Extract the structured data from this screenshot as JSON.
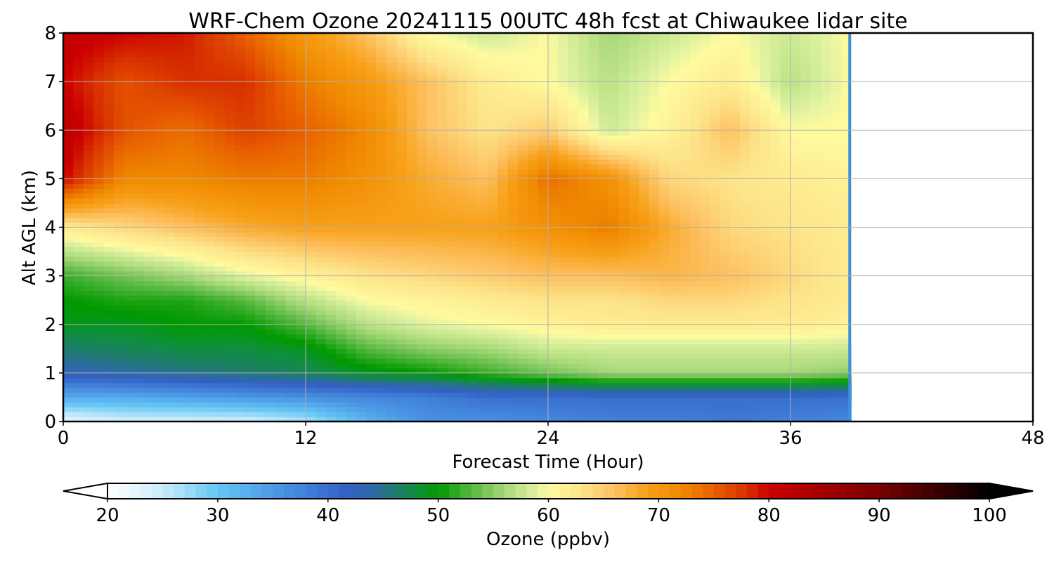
{
  "chart_data": {
    "type": "heatmap",
    "title": "WRF-Chem Ozone  20241115 00UTC 48h fcst at Chiwaukee lidar site",
    "xlabel": "Forecast Time (Hour)",
    "ylabel": "Alt AGL (km)",
    "xlim": [
      0,
      48
    ],
    "ylim": [
      0,
      8
    ],
    "xticks": [
      0,
      12,
      24,
      36,
      48
    ],
    "yticks": [
      0,
      1,
      2,
      3,
      4,
      5,
      6,
      7,
      8
    ],
    "grid": true,
    "data_end_hour": 39,
    "x": [
      0,
      3,
      6,
      9,
      12,
      15,
      18,
      21,
      24,
      27,
      30,
      33,
      36,
      39
    ],
    "y": [
      0,
      0.5,
      1,
      1.5,
      2,
      2.5,
      3,
      4,
      5,
      6,
      7,
      8
    ],
    "z": [
      [
        22,
        24,
        24,
        24,
        26,
        32,
        36,
        36,
        37,
        38,
        38,
        39,
        38,
        37
      ],
      [
        33,
        33,
        34,
        35,
        36,
        37,
        38,
        40,
        40,
        40,
        40,
        40,
        40,
        40
      ],
      [
        43,
        44,
        45,
        46,
        47,
        49,
        50,
        52,
        54,
        56,
        56,
        56,
        56,
        55
      ],
      [
        46,
        47,
        48,
        48,
        49,
        53,
        55,
        56,
        58,
        58,
        58,
        58,
        58,
        58
      ],
      [
        49,
        49,
        50,
        50,
        53,
        57,
        59,
        60,
        61,
        62,
        62,
        62,
        62,
        61
      ],
      [
        50,
        51,
        51,
        53,
        57,
        60,
        61,
        62,
        63,
        63,
        64,
        64,
        63,
        62
      ],
      [
        52,
        54,
        56,
        59,
        61,
        63,
        64,
        65,
        66,
        66,
        67,
        66,
        64,
        62
      ],
      [
        62,
        64,
        66,
        68,
        69,
        69,
        69,
        69,
        71,
        73,
        68,
        64,
        63,
        62
      ],
      [
        80,
        72,
        72,
        73,
        73,
        71,
        68,
        66,
        74,
        71,
        64,
        63,
        62,
        61
      ],
      [
        82,
        76,
        74,
        77,
        75,
        72,
        66,
        63,
        65,
        58,
        61,
        66,
        60,
        60
      ],
      [
        80,
        76,
        78,
        78,
        73,
        70,
        66,
        62,
        60,
        57,
        60,
        62,
        57,
        60
      ],
      [
        81,
        80,
        79,
        75,
        70,
        66,
        60,
        58,
        60,
        56,
        58,
        60,
        58,
        60
      ]
    ],
    "colorbar": {
      "label": "Ozone  (ppbv)",
      "min": 20,
      "max": 100,
      "step": 1,
      "ticks": [
        20,
        30,
        40,
        50,
        60,
        70,
        80,
        90,
        100
      ],
      "extend": "both",
      "colors": [
        {
          "v": 20,
          "c": "#ffffff"
        },
        {
          "v": 25,
          "c": "#c8ecfb"
        },
        {
          "v": 30,
          "c": "#66c6f5"
        },
        {
          "v": 35,
          "c": "#4c9ae6"
        },
        {
          "v": 40,
          "c": "#3a6fd0"
        },
        {
          "v": 42,
          "c": "#3160c0"
        },
        {
          "v": 44,
          "c": "#2e6aa8"
        },
        {
          "v": 46,
          "c": "#1f7a6e"
        },
        {
          "v": 48,
          "c": "#0f8f3f"
        },
        {
          "v": 50,
          "c": "#009900"
        },
        {
          "v": 53,
          "c": "#56b840"
        },
        {
          "v": 56,
          "c": "#a6d878"
        },
        {
          "v": 59,
          "c": "#e0f2a0"
        },
        {
          "v": 60,
          "c": "#fffa9e"
        },
        {
          "v": 63,
          "c": "#fde48a"
        },
        {
          "v": 66,
          "c": "#fdc060"
        },
        {
          "v": 69,
          "c": "#f7a018"
        },
        {
          "v": 72,
          "c": "#f08a00"
        },
        {
          "v": 75,
          "c": "#e86000"
        },
        {
          "v": 78,
          "c": "#d83000"
        },
        {
          "v": 80,
          "c": "#cc0000"
        },
        {
          "v": 85,
          "c": "#a00000"
        },
        {
          "v": 90,
          "c": "#7a0000"
        },
        {
          "v": 95,
          "c": "#3c0000"
        },
        {
          "v": 100,
          "c": "#000000"
        }
      ]
    }
  }
}
